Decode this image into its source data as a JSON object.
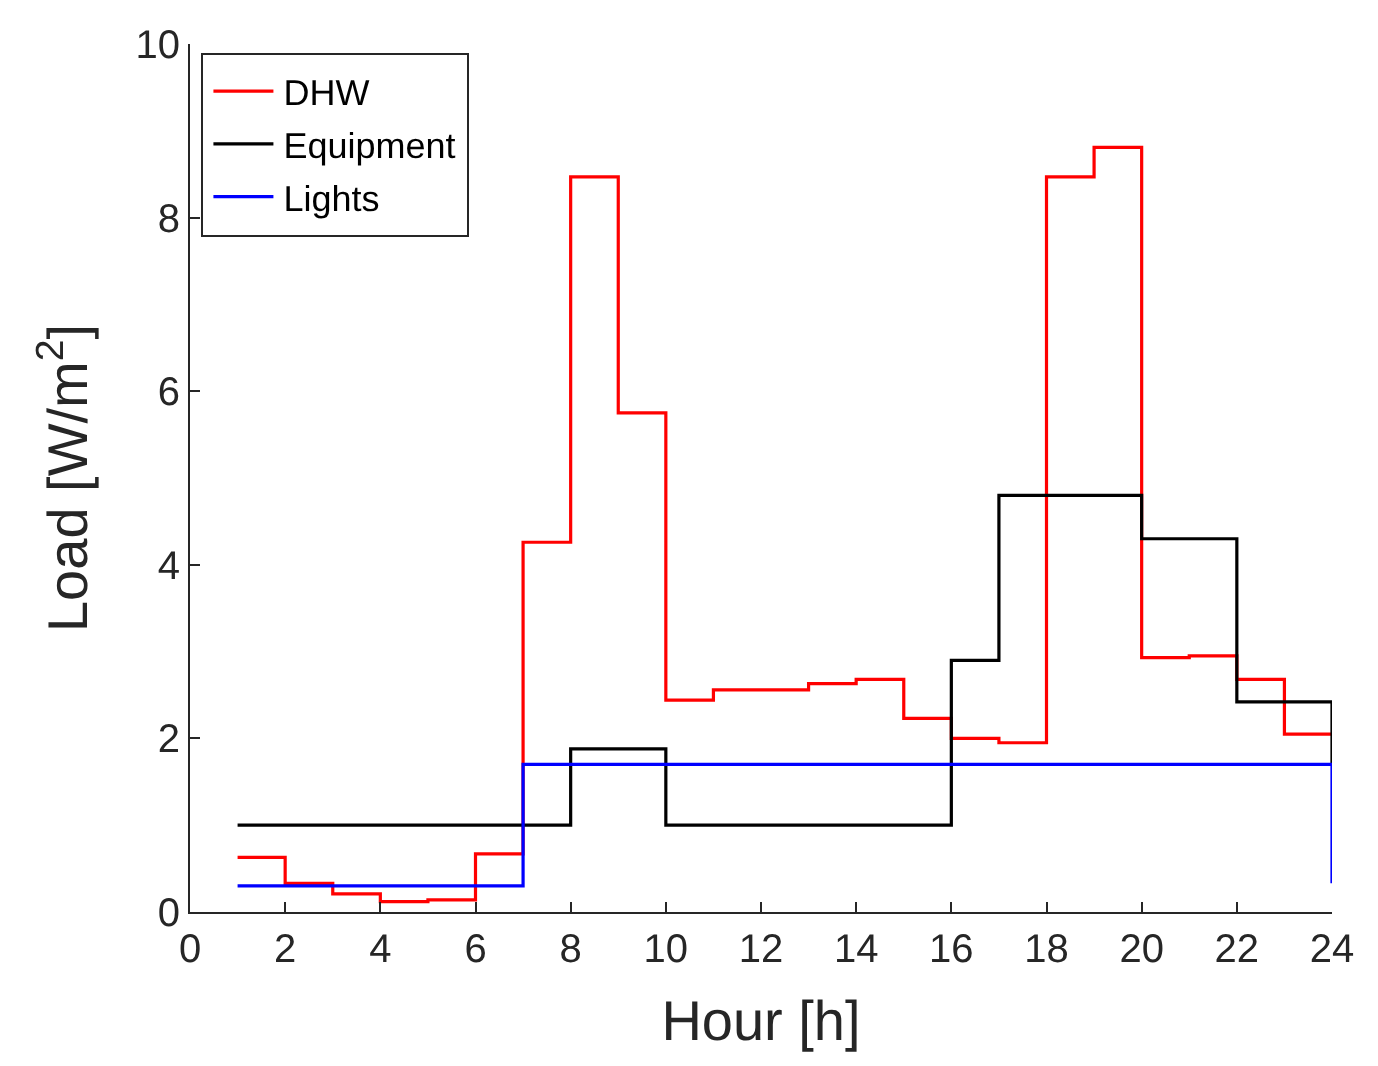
{
  "chart_data": {
    "type": "step",
    "xlabel": "Hour [h]",
    "ylabel": "Load [W/m$^{2}$]",
    "x": [
      1,
      2,
      3,
      4,
      5,
      6,
      7,
      8,
      9,
      10,
      11,
      12,
      13,
      14,
      15,
      16,
      17,
      18,
      19,
      20,
      21,
      22,
      23,
      24
    ],
    "series": [
      {
        "name": "DHW",
        "color": "#ff0000",
        "values": [
          0.63,
          0.33,
          0.21,
          0.12,
          0.14,
          0.67,
          4.26,
          8.47,
          5.75,
          2.44,
          2.56,
          2.56,
          2.63,
          2.68,
          2.23,
          2.0,
          1.95,
          8.47,
          8.81,
          2.93,
          2.95,
          2.68,
          2.05,
          2.05
        ]
      },
      {
        "name": "Equipment",
        "color": "#000000",
        "values": [
          1.0,
          1.0,
          1.0,
          1.0,
          1.0,
          1.0,
          1.0,
          1.88,
          1.88,
          1.0,
          1.0,
          1.0,
          1.0,
          1.0,
          1.0,
          2.9,
          4.8,
          4.8,
          4.8,
          4.3,
          4.3,
          2.42,
          2.42,
          1.7
        ]
      },
      {
        "name": "Lights",
        "color": "#0000ff",
        "values": [
          0.3,
          0.3,
          0.3,
          0.3,
          0.3,
          0.3,
          1.7,
          1.7,
          1.7,
          1.7,
          1.7,
          1.7,
          1.7,
          1.7,
          1.7,
          1.7,
          1.7,
          1.7,
          1.7,
          1.7,
          1.7,
          1.7,
          1.7,
          0.33
        ]
      }
    ],
    "xlim": [
      0,
      24
    ],
    "xticks": [
      0,
      2,
      4,
      6,
      8,
      10,
      12,
      14,
      16,
      18,
      20,
      22,
      24
    ],
    "ylim": [
      0,
      10
    ],
    "yticks": [
      0,
      2,
      4,
      6,
      8,
      10
    ],
    "legend": "top left",
    "marker": "none",
    "line_style": "solid"
  }
}
